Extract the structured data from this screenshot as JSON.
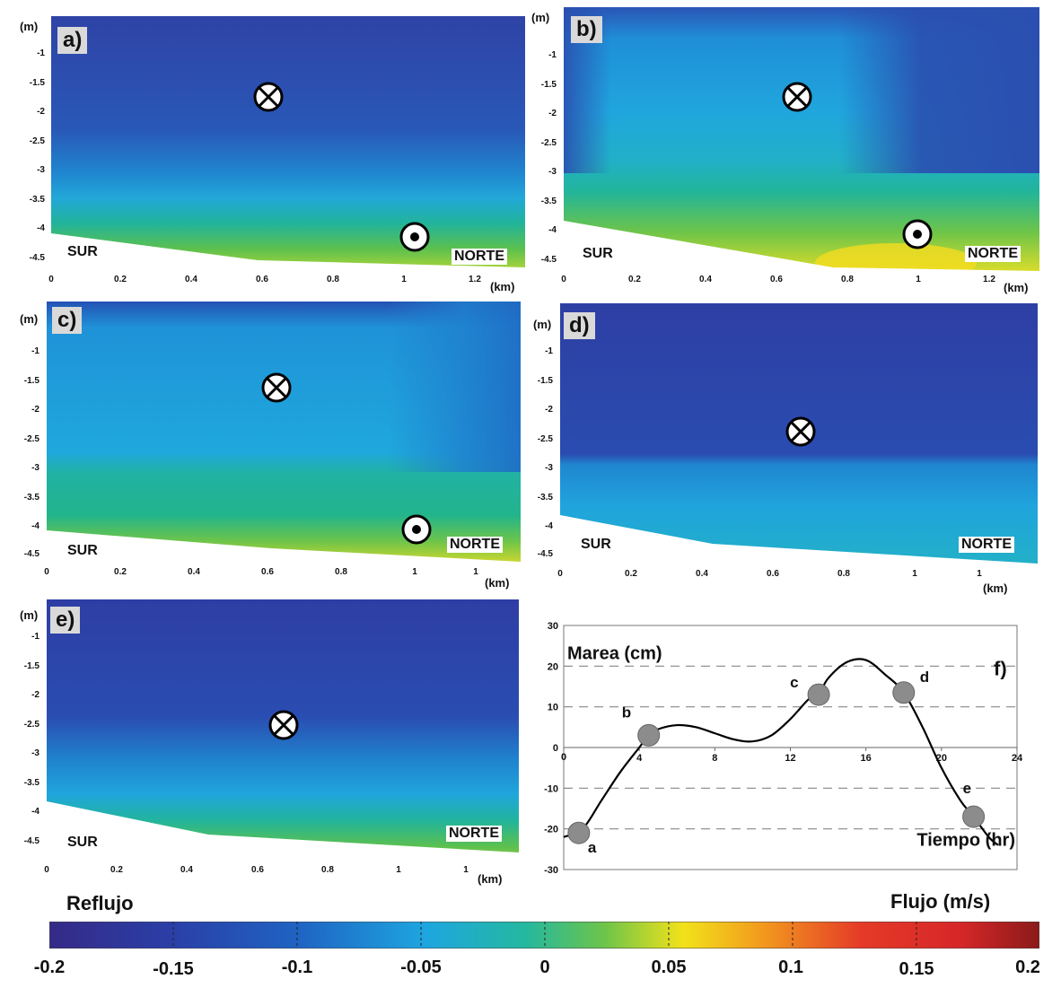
{
  "colors": {
    "blue_dark": "#2b3a9e",
    "blue_mid": "#1f66c4",
    "cyan": "#22a8e0",
    "teal": "#22b4a4",
    "green": "#6cc44a",
    "yellow": "#f2e21a",
    "red": "#d62728",
    "dark_red": "#8b1a1a"
  },
  "panels": [
    {
      "id": "a",
      "label": "a)",
      "y_unit": "(m)",
      "x_unit": "(km)",
      "south": "SUR",
      "north": "NORTE",
      "y_ticks": [
        "-1",
        "-1.5",
        "-2",
        "-2.5",
        "-3",
        "-3.5",
        "-4",
        "-4.5"
      ],
      "x_ticks": [
        "0",
        "0.2",
        "0.4",
        "0.6",
        "0.8",
        "1",
        "1.2"
      ],
      "markers": [
        {
          "type": "cross-icon"
        },
        {
          "type": "dot-icon"
        }
      ]
    },
    {
      "id": "b",
      "label": "b)",
      "y_unit": "(m)",
      "x_unit": "(km)",
      "south": "SUR",
      "north": "NORTE",
      "y_ticks": [
        "-1",
        "-1.5",
        "-2",
        "-2.5",
        "-3",
        "-3.5",
        "-4",
        "-4.5"
      ],
      "x_ticks": [
        "0",
        "0.2",
        "0.4",
        "0.6",
        "0.8",
        "1",
        "1.2"
      ],
      "markers": [
        {
          "type": "cross-icon"
        },
        {
          "type": "dot-icon"
        }
      ]
    },
    {
      "id": "c",
      "label": "c)",
      "y_unit": "(m)",
      "x_unit": "(km)",
      "south": "SUR",
      "north": "NORTE",
      "y_ticks": [
        "-1",
        "-1.5",
        "-2",
        "-2.5",
        "-3",
        "-3.5",
        "-4",
        "-4.5"
      ],
      "x_ticks": [
        "0",
        "0.2",
        "0.4",
        "0.6",
        "0.8",
        "1",
        "1"
      ],
      "markers": [
        {
          "type": "cross-icon"
        },
        {
          "type": "dot-icon"
        }
      ]
    },
    {
      "id": "d",
      "label": "d)",
      "y_unit": "(m)",
      "x_unit": "(km)",
      "south": "SUR",
      "north": "NORTE",
      "y_ticks": [
        "-1",
        "-1.5",
        "-2",
        "-2.5",
        "-3",
        "-3.5",
        "-4",
        "-4.5"
      ],
      "x_ticks": [
        "0",
        "0.2",
        "0.4",
        "0.6",
        "0.8",
        "1",
        "1"
      ],
      "markers": [
        {
          "type": "cross-icon"
        }
      ]
    },
    {
      "id": "e",
      "label": "e)",
      "y_unit": "(m)",
      "x_unit": "(km)",
      "south": "SUR",
      "north": "NORTE",
      "y_ticks": [
        "-1",
        "-1.5",
        "-2",
        "-2.5",
        "-3",
        "-3.5",
        "-4",
        "-4.5"
      ],
      "x_ticks": [
        "0",
        "0.2",
        "0.4",
        "0.6",
        "0.8",
        "1",
        "1"
      ],
      "markers": [
        {
          "type": "cross-icon"
        }
      ]
    }
  ],
  "chart_data": {
    "type": "line",
    "panel_label": "f)",
    "ylabel": "Marea (cm)",
    "xlabel": "Tiempo (hr)",
    "xlim": [
      0,
      24
    ],
    "ylim": [
      -30,
      30
    ],
    "x_ticks": [
      "0",
      "4",
      "8",
      "12",
      "16",
      "20",
      "24"
    ],
    "y_ticks": [
      "30",
      "20",
      "10",
      "0",
      "-10",
      "-20",
      "-30"
    ],
    "dashed_gridlines_y": [
      20,
      10,
      -10,
      -20
    ],
    "curve": {
      "x": [
        0,
        1,
        2,
        3,
        4,
        4.5,
        5,
        6,
        7,
        8,
        9,
        10,
        11,
        12,
        13,
        13.5,
        14,
        15,
        16,
        17,
        18,
        19,
        20,
        21,
        21.7,
        22.5,
        23
      ],
      "y": [
        -22,
        -20,
        -13,
        -6,
        0,
        3,
        4.5,
        5.5,
        5,
        3.5,
        2,
        1.5,
        3,
        7,
        12,
        13,
        17,
        21,
        21.5,
        18,
        13.5,
        5,
        -5,
        -13,
        -17,
        -22,
        -24
      ]
    },
    "points": [
      {
        "label": "a",
        "x": 0.8,
        "y": -21
      },
      {
        "label": "b",
        "x": 4.5,
        "y": 3
      },
      {
        "label": "c",
        "x": 13.5,
        "y": 13
      },
      {
        "label": "d",
        "x": 18,
        "y": 13.5
      },
      {
        "label": "e",
        "x": 21.7,
        "y": -17
      }
    ]
  },
  "colorbar": {
    "left_title": "Reflujo",
    "right_title": "Flujo (m/s)",
    "ticks": [
      "-0.2",
      "-0.15",
      "-0.1",
      "-0.05",
      "0",
      "0.05",
      "0.1",
      "0.15",
      "0.2"
    ],
    "range": [
      -0.2,
      0.2
    ]
  }
}
